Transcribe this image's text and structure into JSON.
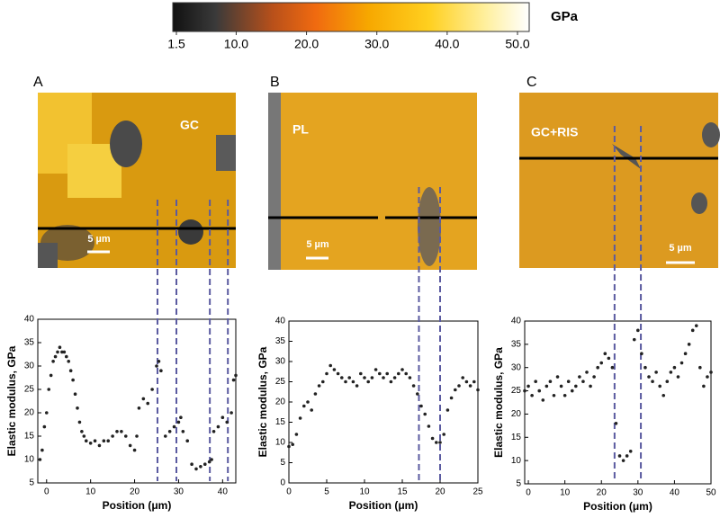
{
  "colorbar": {
    "label": "GPa",
    "lim": [
      1.5,
      50
    ],
    "ticks": [
      1.5,
      {
        "value": 10,
        "label": "10.0"
      },
      {
        "value": 20,
        "label": "20.0"
      },
      {
        "value": 30,
        "label": "30.0"
      },
      {
        "value": 40,
        "label": "40.0"
      },
      {
        "value": 50,
        "label": "50.0"
      }
    ]
  },
  "panels": [
    {
      "letter": "A",
      "region": "GC",
      "scale": "5 µm"
    },
    {
      "letter": "B",
      "region": "PL",
      "scale": "5 µm"
    },
    {
      "letter": "C",
      "region": "GC+RIS",
      "scale": "5 µm"
    }
  ],
  "chart_data": [
    {
      "type": "scatter",
      "xlabel": "Position (μm)",
      "ylabel": "Elastic modulus, GPa",
      "color": "#222222",
      "xlim": [
        -2,
        43
      ],
      "xticks": [
        0,
        10,
        20,
        30,
        40
      ],
      "ylim": [
        5,
        40
      ],
      "yticks": [
        5,
        10,
        15,
        20,
        25,
        30,
        35,
        40
      ],
      "markers": [
        25.2,
        29.5,
        37.1,
        41.2
      ],
      "x": [
        -1.5,
        -1,
        -0.5,
        0,
        0.5,
        1,
        1.5,
        2,
        2.5,
        3,
        3.5,
        4,
        4.5,
        5,
        5.5,
        6,
        6.5,
        7,
        7.5,
        8,
        8.5,
        9,
        10,
        11,
        12,
        13,
        14,
        15,
        16,
        17,
        18,
        19,
        20,
        20.5,
        21,
        22,
        23,
        24,
        25,
        25.5,
        26,
        27,
        28,
        29,
        30,
        30.5,
        31,
        32,
        33,
        34,
        35,
        36,
        37,
        37.5,
        38,
        39,
        40,
        41,
        42,
        42.5,
        43
      ],
      "values": [
        10,
        12,
        17,
        20,
        25,
        28,
        31,
        32,
        33,
        34,
        33,
        33,
        32,
        31,
        29,
        27,
        24,
        21,
        18,
        16,
        15,
        14,
        13.5,
        14,
        13,
        14,
        14,
        15,
        16,
        16,
        15,
        13,
        12,
        15,
        21,
        23,
        22,
        25,
        30,
        31,
        29,
        15,
        16,
        17,
        18,
        19,
        16,
        14,
        9,
        8,
        8.5,
        9,
        9.5,
        10,
        16,
        17,
        19,
        18,
        20,
        27,
        28
      ]
    },
    {
      "type": "scatter",
      "xlabel": "Position (μm)",
      "ylabel": "Elastic modulus, GPa",
      "color": "#222222",
      "xlim": [
        0,
        25
      ],
      "xticks": [
        0,
        5,
        10,
        15,
        20,
        25
      ],
      "ylim": [
        0,
        40
      ],
      "yticks": [
        0,
        5,
        10,
        15,
        20,
        25,
        30,
        35,
        40
      ],
      "markers": [
        17.2,
        20
      ],
      "x": [
        0,
        0.5,
        1,
        1.5,
        2,
        2.5,
        3,
        3.5,
        4,
        4.5,
        5,
        5.5,
        6,
        6.5,
        7,
        7.5,
        8,
        8.5,
        9,
        9.5,
        10,
        10.5,
        11,
        11.5,
        12,
        12.5,
        13,
        13.5,
        14,
        14.5,
        15,
        15.5,
        16,
        16.5,
        17,
        17.5,
        18,
        18.5,
        19,
        19.5,
        20,
        20.5,
        21,
        21.5,
        22,
        22.5,
        23,
        23.5,
        24,
        24.5,
        25
      ],
      "values": [
        9,
        9.5,
        12,
        16,
        19,
        20,
        18,
        22,
        24,
        25,
        27,
        29,
        28,
        27,
        26,
        25,
        26,
        25,
        24,
        27,
        26,
        25,
        26,
        28,
        27,
        26,
        27,
        25,
        26,
        27,
        28,
        27,
        26,
        24,
        22,
        19,
        17,
        14,
        11,
        10,
        10,
        12,
        18,
        21,
        23,
        24,
        26,
        25,
        24,
        25,
        23
      ]
    },
    {
      "type": "scatter",
      "xlabel": "Position (μm)",
      "ylabel": "Elastic modulus, GPa",
      "color": "#222222",
      "xlim": [
        -1,
        50
      ],
      "xticks": [
        0,
        10,
        20,
        30,
        40,
        50
      ],
      "ylim": [
        5,
        40
      ],
      "yticks": [
        5,
        10,
        15,
        20,
        25,
        30,
        35,
        40
      ],
      "markers": [
        23.6,
        30.8
      ],
      "x": [
        -1,
        0,
        1,
        2,
        3,
        4,
        5,
        6,
        7,
        8,
        9,
        10,
        11,
        12,
        13,
        14,
        15,
        16,
        17,
        18,
        19,
        20,
        21,
        22,
        23,
        24,
        25,
        26,
        27,
        28,
        29,
        30,
        31,
        32,
        33,
        34,
        35,
        36,
        37,
        38,
        39,
        40,
        41,
        42,
        43,
        44,
        45,
        46,
        47,
        48,
        49,
        50
      ],
      "values": [
        25,
        26,
        24,
        27,
        25,
        23,
        26,
        27,
        24,
        28,
        26,
        24,
        27,
        25,
        26,
        28,
        27,
        29,
        26,
        28,
        30,
        31,
        33,
        32,
        30,
        18,
        11,
        10,
        11,
        12,
        36,
        38,
        33,
        30,
        28,
        27,
        29,
        26,
        24,
        27,
        29,
        30,
        28,
        31,
        33,
        35,
        38,
        39,
        30,
        26,
        28,
        29
      ]
    }
  ]
}
